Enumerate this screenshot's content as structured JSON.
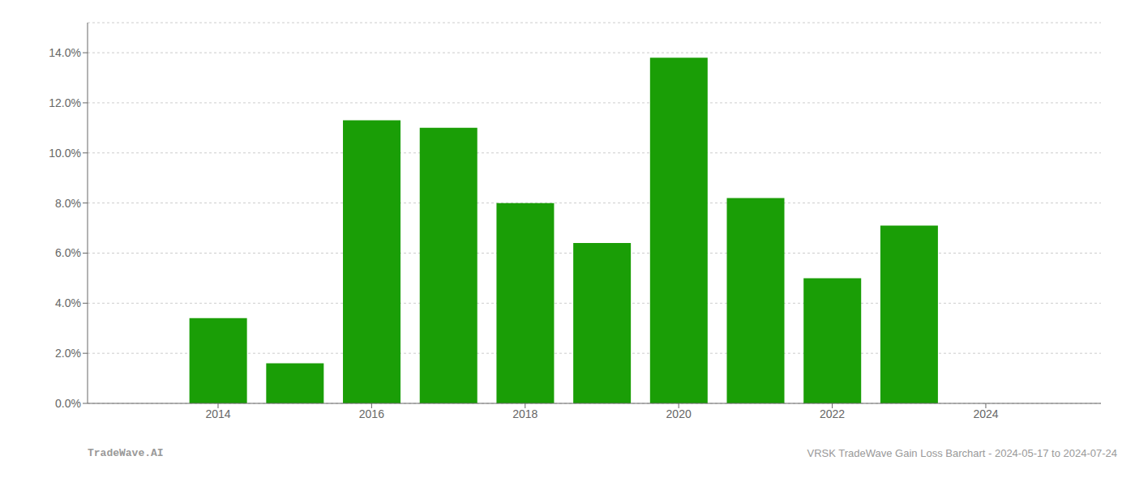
{
  "chart_data": {
    "type": "bar",
    "x": [
      2014,
      2015,
      2016,
      2017,
      2018,
      2019,
      2020,
      2021,
      2022,
      2023,
      2024
    ],
    "values": [
      0.034,
      0.016,
      0.113,
      0.11,
      0.08,
      0.064,
      0.138,
      0.082,
      0.05,
      0.071,
      0.0
    ],
    "color": "#1a9e06",
    "xlim": [
      2012.3,
      2025.5
    ],
    "xticks": [
      2014,
      2016,
      2018,
      2020,
      2022,
      2024
    ],
    "ylim": [
      0,
      0.152
    ],
    "yticks": [
      {
        "value": 0.0,
        "label": "0.0%"
      },
      {
        "value": 0.02,
        "label": "2.0%"
      },
      {
        "value": 0.04,
        "label": "4.0%"
      },
      {
        "value": 0.06,
        "label": "6.0%"
      },
      {
        "value": 0.08,
        "label": "8.0%"
      },
      {
        "value": 0.1,
        "label": "10.0%"
      },
      {
        "value": 0.12,
        "label": "12.0%"
      },
      {
        "value": 0.14,
        "label": "14.0%"
      }
    ],
    "grid": true,
    "annotations": [
      "TradeWave.AI",
      "VRSK TradeWave Gain Loss Barchart - 2024-05-17 to 2024-07-24"
    ]
  }
}
